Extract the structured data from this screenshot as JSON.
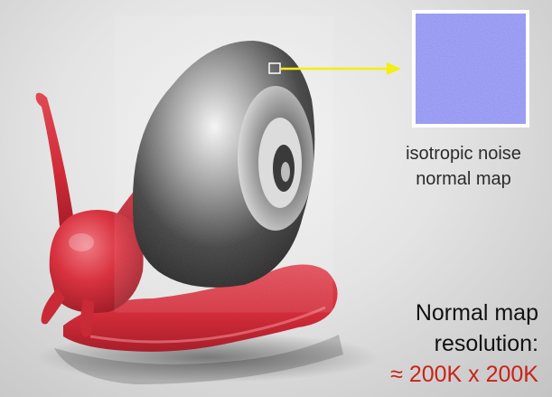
{
  "annotations": {
    "normal_map_caption": {
      "line1": "isotropic noise",
      "line2": "normal map"
    },
    "resolution": {
      "line1": "Normal map",
      "line2": "resolution:",
      "value": "≈ 200K x 200K"
    }
  },
  "colors": {
    "snail_body": "#d8323f",
    "arrow": "#f5ee10",
    "resolution_value": "#c8231a",
    "normal_map_base": "#8c8ef0"
  },
  "icons": {
    "arrow": "right-arrow"
  }
}
